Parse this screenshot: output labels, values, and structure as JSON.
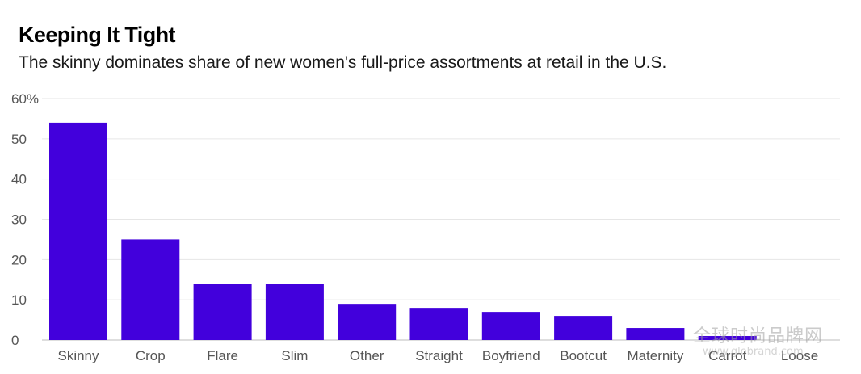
{
  "chart_data": {
    "type": "bar",
    "title": "Keeping It Tight",
    "subtitle": "The skinny dominates share of new women's full-price assortments at retail in the U.S.",
    "xlabel": "",
    "ylabel": "",
    "categories": [
      "Skinny",
      "Crop",
      "Flare",
      "Slim",
      "Other",
      "Straight",
      "Boyfriend",
      "Bootcut",
      "Maternity",
      "Carrot",
      "Loose"
    ],
    "values": [
      54,
      25,
      14,
      14,
      9,
      8,
      7,
      6,
      3,
      1,
      0
    ],
    "ylim": [
      0,
      60
    ],
    "yticks": [
      0,
      10,
      20,
      30,
      40,
      50,
      60
    ],
    "ytick_labels": [
      "0",
      "10",
      "20",
      "30",
      "40",
      "50",
      "60%"
    ],
    "grid": true,
    "bar_color": "#4200dc",
    "grid_color": "#e6e6e6"
  },
  "watermark": {
    "text": "全球时尚品牌网",
    "url": "www.globrand.com"
  }
}
